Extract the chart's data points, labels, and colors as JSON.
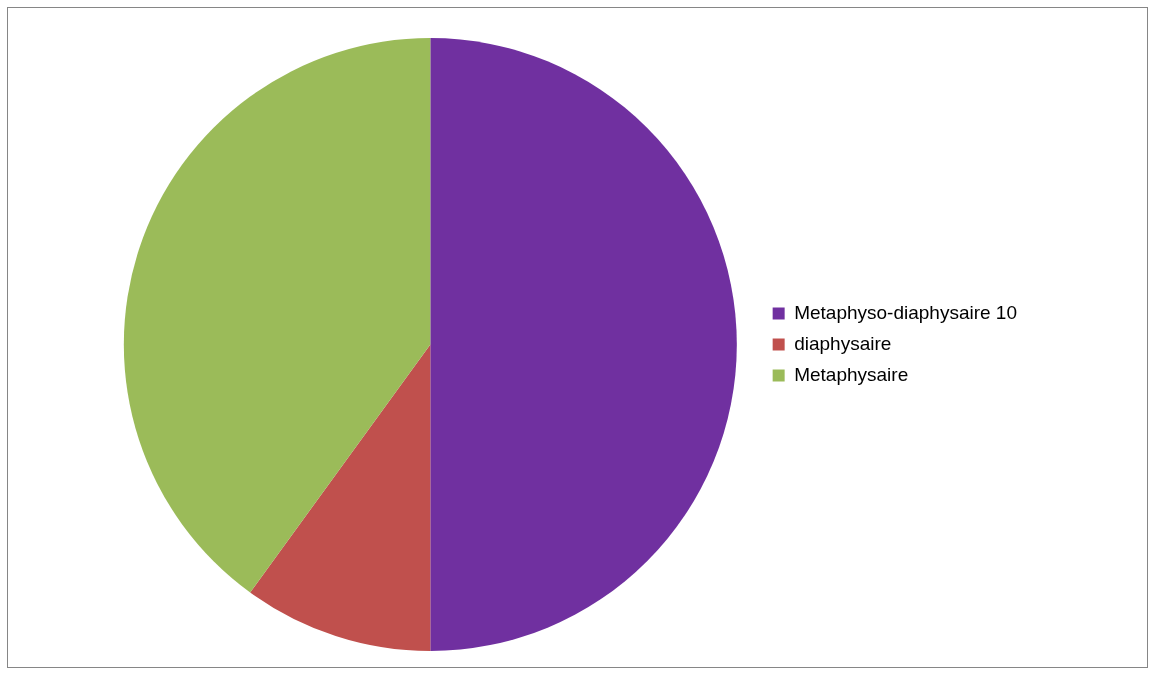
{
  "chart_data": {
    "type": "pie",
    "categories": [
      "Metaphyso-diaphysaire 10",
      "diaphysaire",
      "Metaphysaire"
    ],
    "values": [
      50,
      10,
      40
    ],
    "colors": [
      "#7030a0",
      "#c0504d",
      "#9bbb59"
    ],
    "legend": "right"
  }
}
